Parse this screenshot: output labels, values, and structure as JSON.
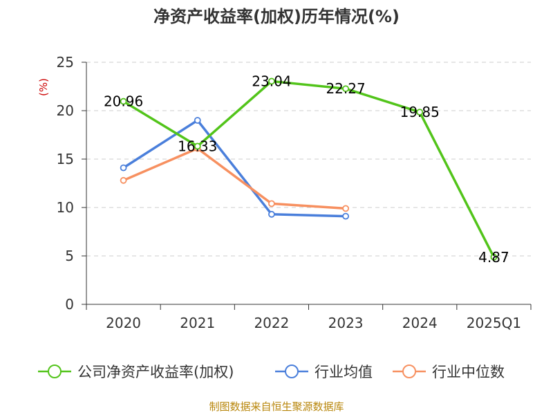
{
  "title": "净资产收益率(加权)历年情况(%)",
  "source": "制图数据来自恒生聚源数据库",
  "chart_data": {
    "type": "line",
    "title": "净资产收益率(加权)历年情况(%)",
    "ylabel": "(%)",
    "xlabel": "",
    "categories": [
      "2020",
      "2021",
      "2022",
      "2023",
      "2024",
      "2025Q1"
    ],
    "ylim": [
      0,
      25
    ],
    "yticks": [
      0,
      5,
      10,
      15,
      20,
      25
    ],
    "grid": true,
    "legend": "bottom",
    "series": [
      {
        "name": "公司净资产收益率(加权)",
        "color": "#52c41a",
        "values": [
          20.96,
          16.33,
          23.04,
          22.27,
          19.85,
          4.87
        ],
        "labels": [
          "20.96",
          "16.33",
          "23.04",
          "22.27",
          "19.85",
          "4.87"
        ]
      },
      {
        "name": "行业均值",
        "color": "#4a7fdb",
        "values": [
          14.1,
          19.0,
          9.3,
          9.1,
          null,
          null
        ]
      },
      {
        "name": "行业中位数",
        "color": "#f79060",
        "values": [
          12.8,
          16.1,
          10.4,
          9.9,
          null,
          null
        ]
      }
    ]
  }
}
